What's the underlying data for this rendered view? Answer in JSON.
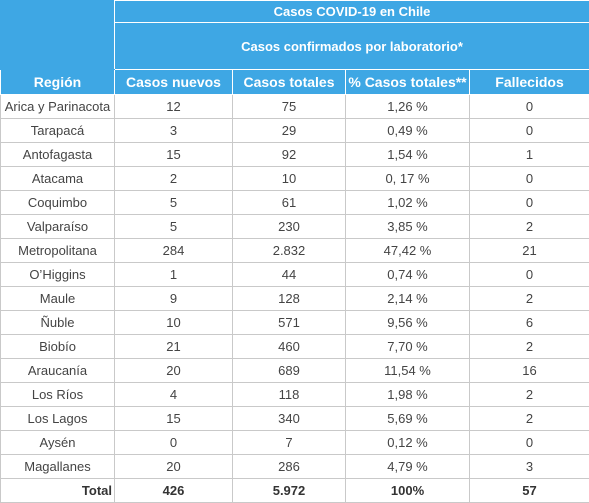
{
  "table": {
    "title": "Casos COVID-19 en Chile",
    "subtitle": "Casos confirmados por laboratorio*",
    "columns": [
      "Región",
      "Casos nuevos",
      "Casos totales",
      "% Casos totales**",
      "Fallecidos"
    ],
    "rows": [
      [
        "Arica y Parinacota",
        "12",
        "75",
        "1,26 %",
        "0"
      ],
      [
        "Tarapacá",
        "3",
        "29",
        "0,49 %",
        "0"
      ],
      [
        "Antofagasta",
        "15",
        "92",
        "1,54 %",
        "1"
      ],
      [
        "Atacama",
        "2",
        "10",
        "0, 17 %",
        "0"
      ],
      [
        "Coquimbo",
        "5",
        "61",
        "1,02 %",
        "0"
      ],
      [
        "Valparaíso",
        "5",
        "230",
        "3,85 %",
        "2"
      ],
      [
        "Metropolitana",
        "284",
        "2.832",
        "47,42 %",
        "21"
      ],
      [
        "O’Higgins",
        "1",
        "44",
        "0,74 %",
        "0"
      ],
      [
        "Maule",
        "9",
        "128",
        "2,14 %",
        "2"
      ],
      [
        "Ñuble",
        "10",
        "571",
        "9,56 %",
        "6"
      ],
      [
        "Biobío",
        "21",
        "460",
        "7,70 %",
        "2"
      ],
      [
        "Araucanía",
        "20",
        "689",
        "11,54 %",
        "16"
      ],
      [
        "Los Ríos",
        "4",
        "118",
        "1,98 %",
        "2"
      ],
      [
        "Los Lagos",
        "15",
        "340",
        "5,69 %",
        "2"
      ],
      [
        "Aysén",
        "0",
        "7",
        "0,12 %",
        "0"
      ],
      [
        "Magallanes",
        "20",
        "286",
        "4,79 %",
        "3"
      ]
    ],
    "total": [
      "Total",
      "426",
      "5.972",
      "100%",
      "57"
    ]
  }
}
